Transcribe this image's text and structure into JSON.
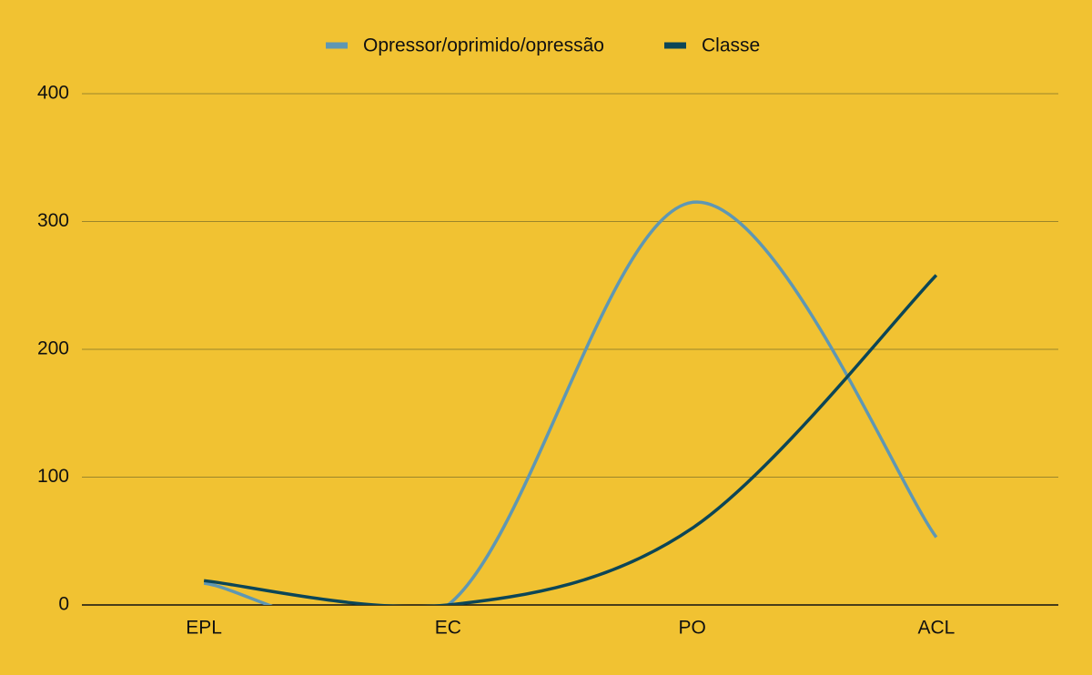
{
  "chart_data": {
    "type": "line",
    "categories": [
      "EPL",
      "EC",
      "PO",
      "ACL"
    ],
    "series": [
      {
        "name": "Opressor/oprimido/opressão",
        "color": "#5f97b3",
        "values": [
          17,
          0,
          315,
          53
        ]
      },
      {
        "name": "Classe",
        "color": "#0c4657",
        "values": [
          19,
          0,
          60,
          258
        ]
      }
    ],
    "ylim": [
      0,
      400
    ],
    "yticks": [
      0,
      100,
      200,
      300,
      400
    ],
    "grid": true,
    "legend": "top"
  }
}
